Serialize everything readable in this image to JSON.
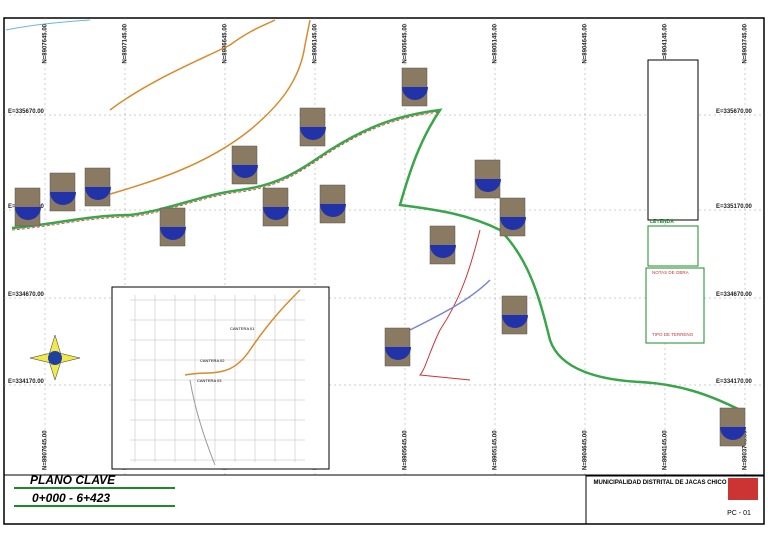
{
  "north_labels": [
    "N=8907645.00",
    "N=8907145.00",
    "N=8906645.00",
    "N=8906145.00",
    "N=8905645.00",
    "N=8905145.00",
    "N=8904645.00",
    "N=8904145.00",
    "N=8903745.00"
  ],
  "east_labels": [
    "E=335670.00",
    "E=335170.00",
    "E=334670.00",
    "E=334170.00"
  ],
  "inset": {
    "labels": [
      "CANTERA 01",
      "CANTERA 02",
      "CANTERA 03"
    ]
  },
  "legend": {
    "title": "LEYENDA",
    "notes_title": "NOTAS DE OBRA",
    "symbols_title": "TIPO DE TERRENO"
  },
  "title_block": {
    "plan_title": "PLANO CLAVE",
    "range": "0+000 - 6+423",
    "client": "MUNICIPALIDAD DISTRITAL DE JACAS CHICO",
    "sheet": "PC - 01"
  }
}
